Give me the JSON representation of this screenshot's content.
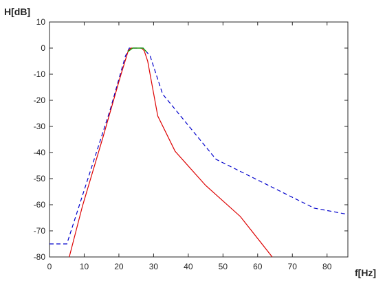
{
  "chart_data": {
    "type": "line",
    "ylabel": "H[dB]",
    "xlabel": "f[Hz]",
    "xlim": [
      0,
      86
    ],
    "ylim": [
      -80,
      10
    ],
    "xticks": [
      0,
      10,
      20,
      30,
      40,
      50,
      60,
      70,
      80
    ],
    "yticks": [
      10,
      0,
      -10,
      -20,
      -30,
      -40,
      -50,
      -60,
      -70,
      -80
    ],
    "series": [
      {
        "color": "#0000cc",
        "dash": true,
        "x": [
          0,
          5,
          17.4,
          21.9,
          23,
          27,
          29,
          32.6,
          48,
          76.3,
          86
        ],
        "values": [
          -75,
          -75,
          -24,
          -3,
          0,
          0,
          -3,
          -17.6,
          -42.6,
          -61.3,
          -63.7
        ]
      },
      {
        "color": "#dd0000",
        "dash": false,
        "x": [
          5.7,
          9.5,
          15.4,
          20.4,
          22.7,
          23.5,
          26.5,
          27.3,
          28.3,
          31.2,
          36.2,
          45,
          55,
          64.2
        ],
        "values": [
          -80,
          -60.5,
          -34.2,
          -11,
          -1,
          0,
          0,
          -1,
          -5,
          -26,
          -39.5,
          -52.6,
          -64.5,
          -80
        ]
      },
      {
        "color": "#00aa00",
        "dash": false,
        "x": [
          22.5,
          24,
          27,
          28
        ],
        "values": [
          -1.5,
          0,
          0,
          -1.5
        ]
      }
    ]
  }
}
